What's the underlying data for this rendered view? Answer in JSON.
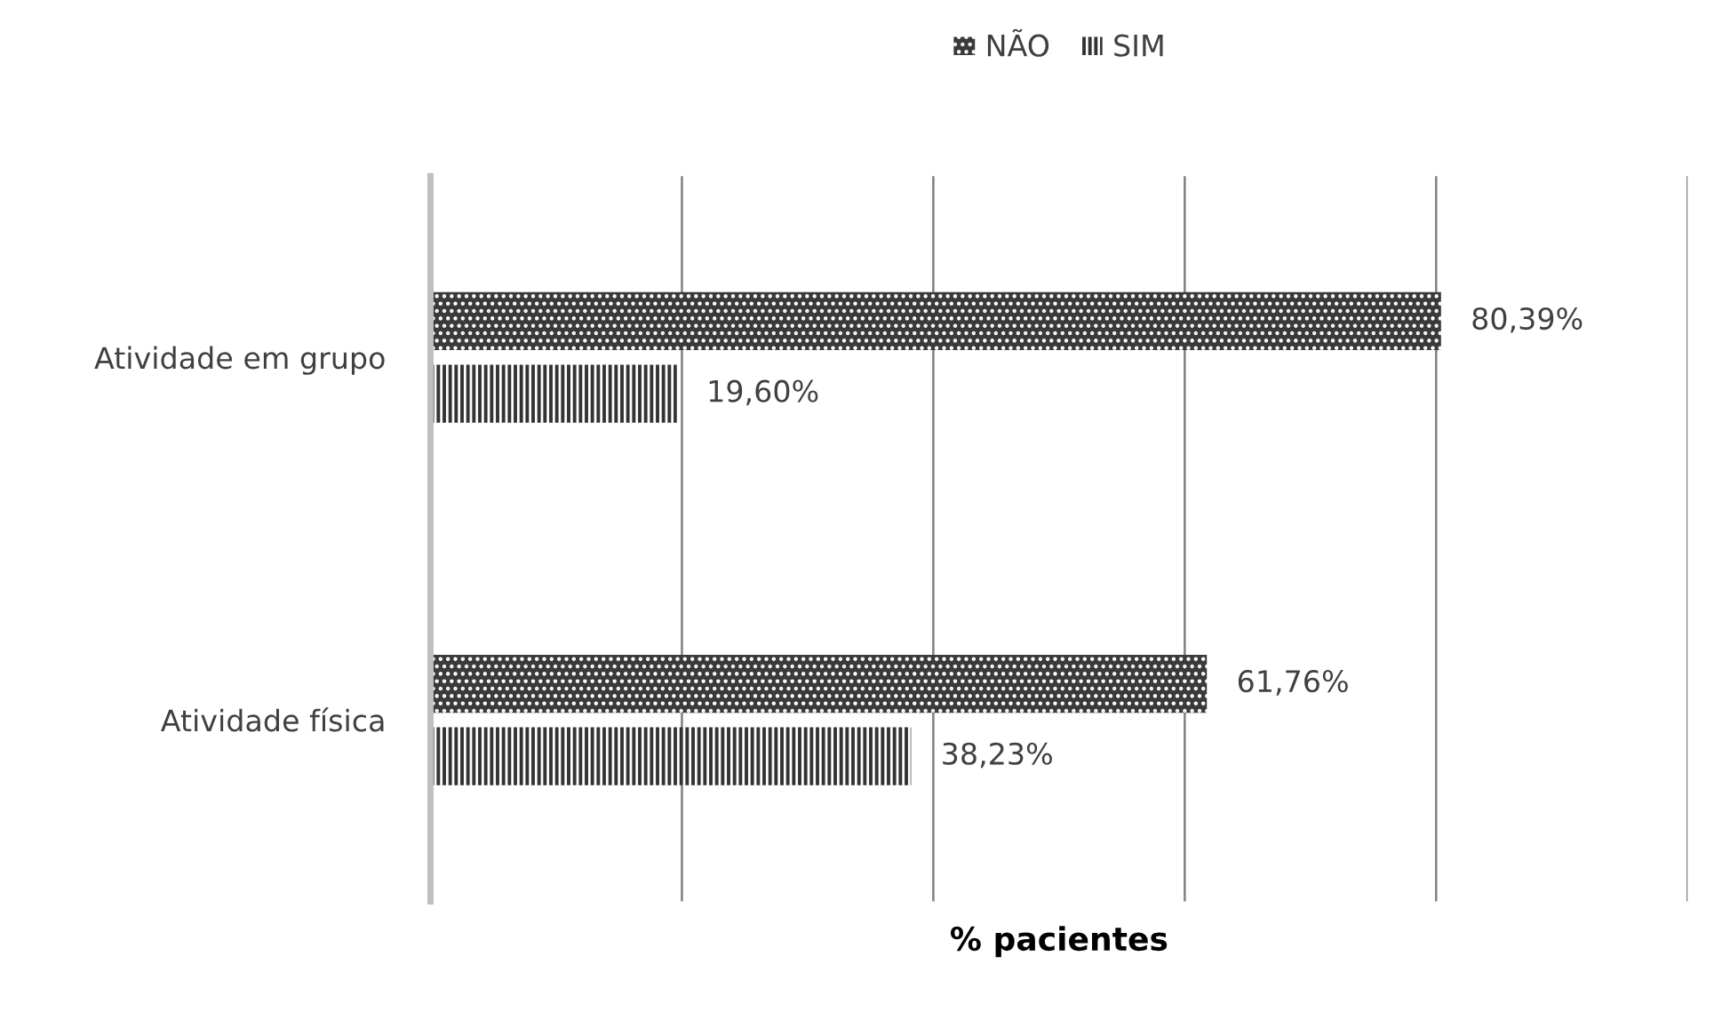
{
  "chart_data": {
    "type": "bar",
    "orientation": "horizontal",
    "xlabel": "% pacientes",
    "categories": [
      "Atividade em grupo",
      "Atividade física"
    ],
    "series": [
      {
        "name": "NÃO",
        "color": "#3a3a3a",
        "values": [
          80.39,
          61.76
        ],
        "value_labels": [
          "80,39%",
          "61,76%"
        ]
      },
      {
        "name": "SIM",
        "color": "#333333",
        "values": [
          19.6,
          38.23
        ],
        "value_labels": [
          "19,60%",
          "38,23%"
        ]
      }
    ],
    "xlim": [
      0,
      100
    ],
    "xticks": [
      {
        "value": 0,
        "label": null
      },
      {
        "value": 20,
        "label": null
      },
      {
        "value": 40,
        "label": null
      },
      {
        "value": 60,
        "label": null
      },
      {
        "value": 80,
        "label": null
      },
      {
        "value": 100,
        "label": null
      }
    ],
    "tick_labels": "y",
    "grid": "x",
    "legend": "top"
  }
}
